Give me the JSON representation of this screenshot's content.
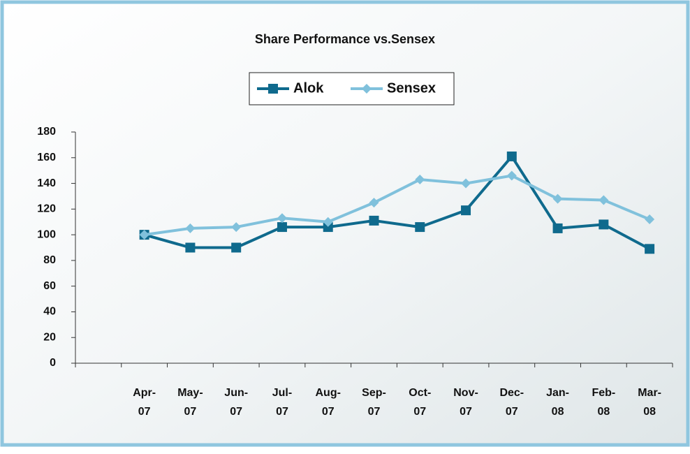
{
  "chart_data": {
    "type": "line",
    "title": "Share Performance vs.Sensex",
    "categories": [
      null,
      "Apr-07",
      "May-07",
      "Jun-07",
      "Jul-07",
      "Aug-07",
      "Sep-07",
      "Oct-07",
      "Nov-07",
      "Dec-07",
      "Jan-08",
      "Feb-08",
      "Mar-08"
    ],
    "series": [
      {
        "name": "Alok",
        "color": "#0f6a8d",
        "marker": "square",
        "values": [
          null,
          100,
          90,
          90,
          106,
          106,
          111,
          106,
          119,
          161,
          105,
          108,
          89
        ]
      },
      {
        "name": "Sensex",
        "color": "#80c1dc",
        "marker": "diamond",
        "values": [
          null,
          100,
          105,
          106,
          113,
          110,
          125,
          143,
          140,
          146,
          128,
          127,
          112
        ]
      }
    ],
    "ylim": [
      0,
      180
    ],
    "yticks": [
      0,
      20,
      40,
      60,
      80,
      100,
      120,
      140,
      160,
      180
    ],
    "grid": false,
    "legend": "top"
  }
}
